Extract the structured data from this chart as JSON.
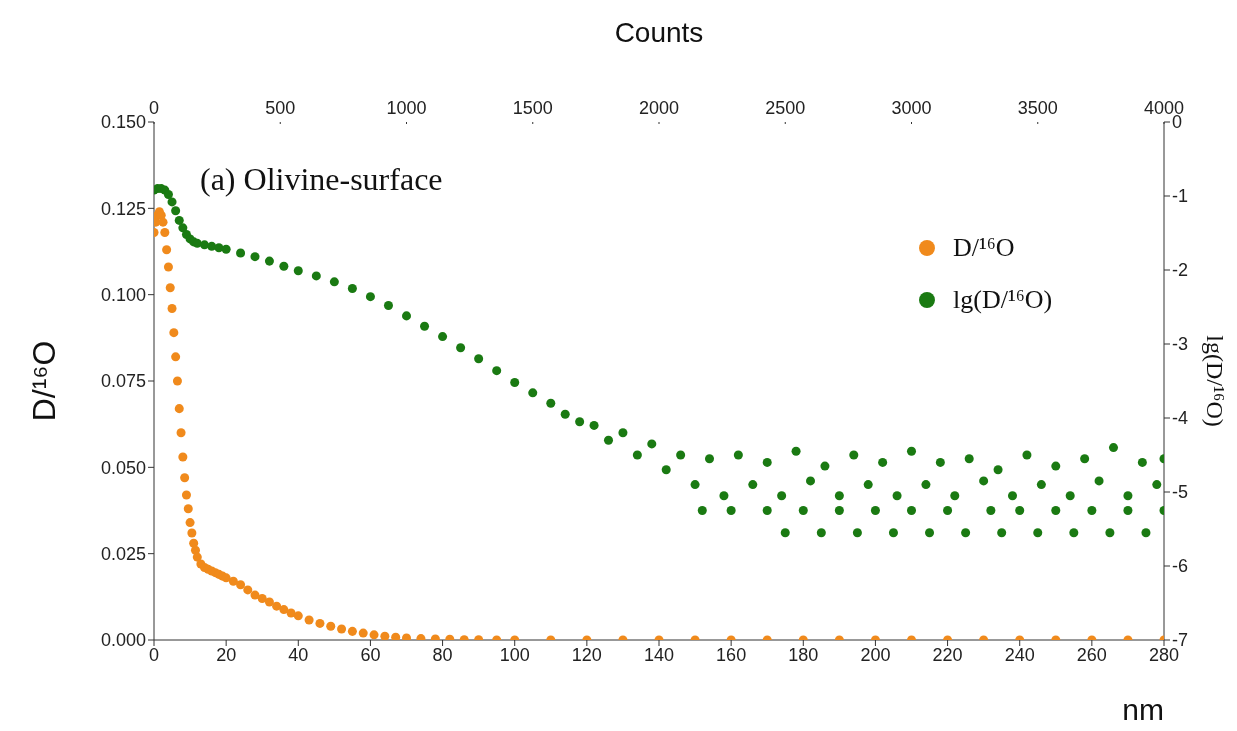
{
  "chart_data": {
    "type": "scatter",
    "title": "(a) Olivine-surface",
    "xlabel": "nm",
    "ylabel": "D/¹⁶O",
    "y2label": "lg(D/¹⁶O)",
    "x2label": "Counts",
    "xlim": [
      0,
      280
    ],
    "xticks": [
      0,
      20,
      40,
      60,
      80,
      100,
      120,
      140,
      160,
      180,
      200,
      220,
      240,
      260,
      280
    ],
    "ylim": [
      0,
      0.15
    ],
    "yticks": [
      {
        "value": 0,
        "label": "0.000"
      },
      {
        "value": 0.025,
        "label": "0.025"
      },
      {
        "value": 0.05,
        "label": "0.050"
      },
      {
        "value": 0.075,
        "label": "0.075"
      },
      {
        "value": 0.1,
        "label": "0.100"
      },
      {
        "value": 0.125,
        "label": "0.125"
      },
      {
        "value": 0.15,
        "label": "0.150"
      }
    ],
    "y2lim": [
      -7,
      0
    ],
    "y2ticks": [
      -7,
      -6,
      -5,
      -4,
      -3,
      -2,
      -1,
      0
    ],
    "x2lim": [
      0,
      4000
    ],
    "x2ticks": [
      0,
      500,
      1000,
      1500,
      2000,
      2500,
      3000,
      3500,
      4000
    ],
    "grid": false,
    "legend": "top right",
    "marker": "circle",
    "series": [
      {
        "name": "D/¹⁶O",
        "color": "#f08a1c",
        "x": [
          0,
          0.5,
          1,
          1.5,
          2,
          2.5,
          3,
          3.5,
          4,
          4.5,
          5,
          5.5,
          6,
          6.5,
          7,
          7.5,
          8,
          8.5,
          9,
          9.5,
          10,
          10.5,
          11,
          11.5,
          12,
          13,
          14,
          15,
          16,
          17,
          18,
          19,
          20,
          22,
          24,
          26,
          28,
          30,
          32,
          34,
          36,
          38,
          40,
          43,
          46,
          49,
          52,
          55,
          58,
          61,
          64,
          67,
          70,
          74,
          78,
          82,
          86,
          90,
          95,
          100,
          110,
          120,
          130,
          140,
          150,
          160,
          170,
          180,
          190,
          200,
          210,
          220,
          230,
          240,
          250,
          260,
          270,
          280
        ],
        "values": [
          0.118,
          0.121,
          0.123,
          0.124,
          0.123,
          0.121,
          0.118,
          0.113,
          0.108,
          0.102,
          0.096,
          0.089,
          0.082,
          0.075,
          0.067,
          0.06,
          0.053,
          0.047,
          0.042,
          0.038,
          0.034,
          0.031,
          0.028,
          0.026,
          0.024,
          0.022,
          0.021,
          0.0205,
          0.02,
          0.0195,
          0.019,
          0.0185,
          0.018,
          0.017,
          0.016,
          0.0145,
          0.013,
          0.012,
          0.011,
          0.0098,
          0.0088,
          0.0078,
          0.007,
          0.0058,
          0.0048,
          0.004,
          0.0032,
          0.0025,
          0.002,
          0.0015,
          0.0011,
          0.0008,
          0.0006,
          0.0004,
          0.0003,
          0.0002,
          0.0001,
          0.0001,
          0,
          0,
          0,
          0,
          0,
          0,
          0,
          0,
          0,
          0,
          0,
          0,
          0,
          0,
          0,
          0,
          0,
          0,
          0,
          0
        ]
      },
      {
        "name": "lg(D/¹⁶O)",
        "color": "#1a7a12",
        "axis": "y2",
        "x": [
          0,
          1,
          2,
          3,
          4,
          5,
          6,
          7,
          8,
          9,
          10,
          11,
          12,
          14,
          16,
          18,
          20,
          24,
          28,
          32,
          36,
          40,
          45,
          50,
          55,
          60,
          65,
          70,
          75,
          80,
          85,
          90,
          95,
          100,
          105,
          110,
          114,
          118,
          122,
          126,
          130,
          134,
          138,
          142,
          146,
          150,
          154,
          158,
          162,
          166,
          170,
          174,
          178,
          182,
          186,
          190,
          194,
          198,
          202,
          206,
          210,
          214,
          218,
          222,
          226,
          230,
          234,
          238,
          242,
          246,
          250,
          254,
          258,
          262,
          266,
          270,
          274,
          278,
          280,
          152,
          160,
          170,
          180,
          190,
          200,
          210,
          220,
          232,
          240,
          250,
          260,
          270,
          280,
          175,
          185,
          195,
          205,
          215,
          225,
          235,
          245,
          255,
          265,
          275
        ],
        "values": [
          -0.92,
          -0.9,
          -0.9,
          -0.92,
          -0.98,
          -1.08,
          -1.2,
          -1.33,
          -1.43,
          -1.52,
          -1.58,
          -1.62,
          -1.64,
          -1.66,
          -1.68,
          -1.7,
          -1.72,
          -1.77,
          -1.82,
          -1.88,
          -1.95,
          -2.01,
          -2.08,
          -2.16,
          -2.25,
          -2.36,
          -2.48,
          -2.62,
          -2.76,
          -2.9,
          -3.05,
          -3.2,
          -3.36,
          -3.52,
          -3.66,
          -3.8,
          -3.95,
          -4.05,
          -4.1,
          -4.3,
          -4.2,
          -4.5,
          -4.35,
          -4.7,
          -4.5,
          -4.9,
          -4.55,
          -5.05,
          -4.5,
          -4.9,
          -4.6,
          -5.05,
          -4.45,
          -4.85,
          -4.65,
          -5.05,
          -4.5,
          -4.9,
          -4.6,
          -5.05,
          -4.45,
          -4.9,
          -4.6,
          -5.05,
          -4.55,
          -4.85,
          -4.7,
          -5.05,
          -4.5,
          -4.9,
          -4.65,
          -5.05,
          -4.55,
          -4.85,
          -4.4,
          -5.05,
          -4.6,
          -4.9,
          -4.55,
          -5.25,
          -5.25,
          -5.25,
          -5.25,
          -5.25,
          -5.25,
          -5.25,
          -5.25,
          -5.25,
          -5.25,
          -5.25,
          -5.25,
          -5.25,
          -5.25,
          -5.55,
          -5.55,
          -5.55,
          -5.55,
          -5.55,
          -5.55,
          -5.55,
          -5.55,
          -5.55,
          -5.55,
          -5.55
        ]
      }
    ]
  }
}
